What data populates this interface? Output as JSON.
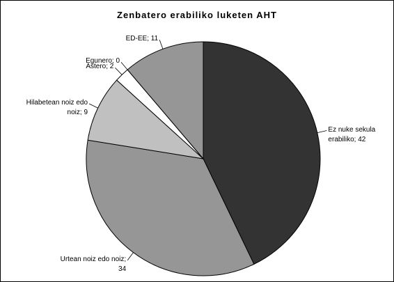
{
  "chart_data": {
    "type": "pie",
    "title": "Zenbatero erabiliko luketen AHT",
    "values": [
      42,
      34,
      9,
      2,
      0,
      11
    ],
    "value_labels": [
      "Ez nuke sekula erabiliko; 42",
      "Urtean noiz edo noiz; 34",
      "Hilabetean noiz edo noiz; 9",
      "Astero; 2",
      "Egunero; 0",
      "ED-EE; 11"
    ],
    "colors": [
      "#333333",
      "#969696",
      "#c0c0c0",
      "#ffffff",
      "#e0e0e0",
      "#969696"
    ]
  }
}
